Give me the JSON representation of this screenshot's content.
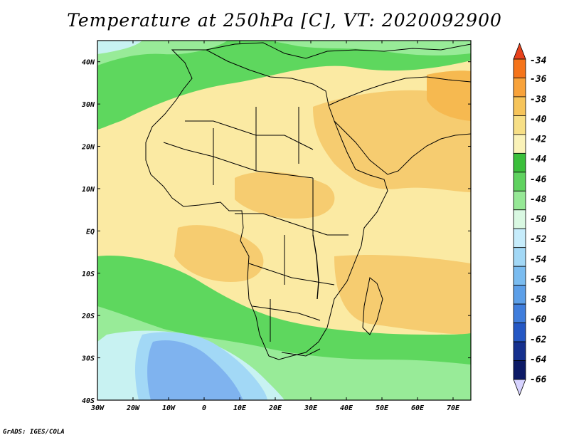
{
  "title": "Temperature at 250hPa [C], VT: 2020092900",
  "credit": "GrADS: IGES/COLA",
  "map": {
    "lon_ticks": [
      "30W",
      "20W",
      "10W",
      "0",
      "10E",
      "20E",
      "30E",
      "40E",
      "50E",
      "60E",
      "70E"
    ],
    "lat_ticks": [
      "40S",
      "30S",
      "20S",
      "10S",
      "EQ",
      "10N",
      "20N",
      "30N",
      "40N"
    ],
    "lon_range": [
      -30,
      75
    ],
    "lat_range": [
      -40,
      45
    ]
  },
  "colorbar": {
    "levels": [
      "-34",
      "-36",
      "-38",
      "-40",
      "-42",
      "-44",
      "-46",
      "-48",
      "-50",
      "-52",
      "-54",
      "-56",
      "-58",
      "-60",
      "-62",
      "-64",
      "-66"
    ],
    "colors": [
      "#e8421c",
      "#f5741a",
      "#f8a23a",
      "#f6c45a",
      "#f7df86",
      "#faf2b8",
      "#3bbf3b",
      "#5fd25f",
      "#96e896",
      "#d9f8e2",
      "#c6ecfb",
      "#a2d8f6",
      "#7abcf0",
      "#5c9fe8",
      "#3f7ddc",
      "#2457c4",
      "#15308e",
      "#0c1a66",
      "#d7d3ff"
    ]
  },
  "colors": {
    "warm_yellow": "#fae8a0",
    "orange": "#f6cc70",
    "green": "#5ed75e",
    "light_green": "#98eb98",
    "cyan": "#c8f2f2",
    "blue": "#7fb3ef",
    "border": "#000000"
  }
}
